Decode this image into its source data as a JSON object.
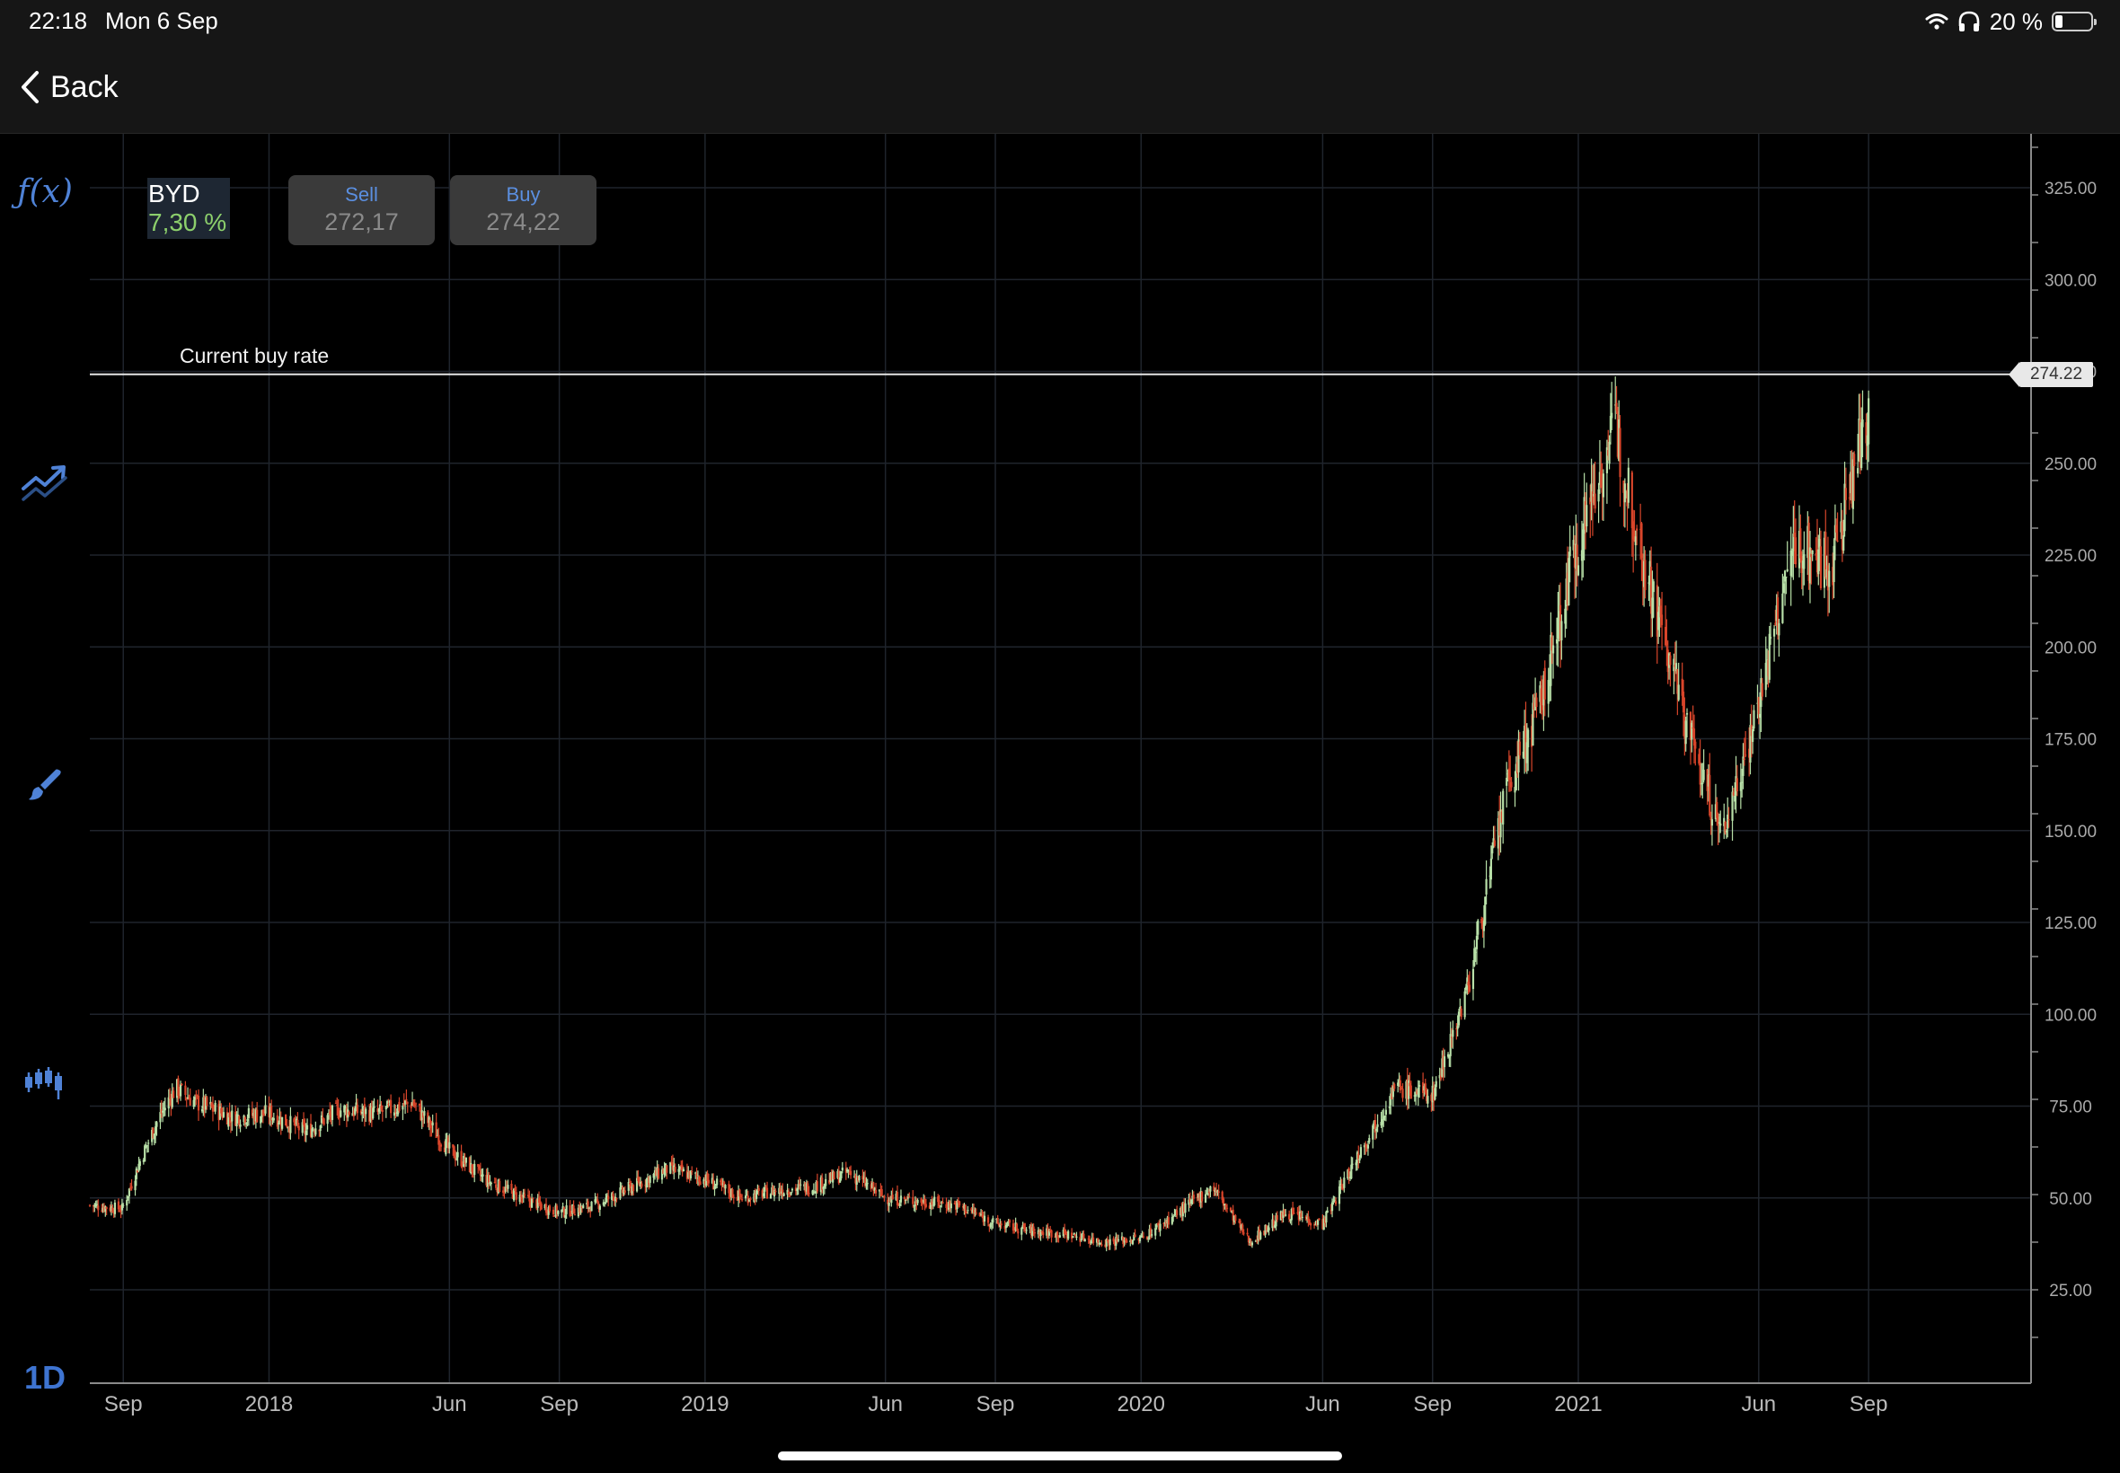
{
  "status_bar": {
    "time": "22:18",
    "date": "Mon 6 Sep",
    "battery_text": "20 %",
    "battery_level": 0.2
  },
  "nav": {
    "back_label": "Back"
  },
  "toolbar": {
    "items": [
      {
        "label": "ƒ(x)",
        "icon": "function-icon"
      },
      {
        "icon": "trend-chart-icon"
      },
      {
        "icon": "brush-icon"
      },
      {
        "icon": "candlestick-icon"
      },
      {
        "label": "1D",
        "icon": "timeframe"
      }
    ]
  },
  "instrument": {
    "name": "BYD",
    "change": "7,30 %",
    "change_color": "#8ccf6c"
  },
  "quotes": {
    "sell": {
      "label": "Sell",
      "value": "272,17"
    },
    "buy": {
      "label": "Buy",
      "value": "274,22"
    }
  },
  "current_rate": {
    "label": "Current buy rate",
    "value": "274.22"
  },
  "colors": {
    "up": "#b8e0a8",
    "down": "#d8452a",
    "grid": "#1f242c",
    "accent": "#4f82d6"
  },
  "chart_data": {
    "type": "candlestick",
    "title": "",
    "xlabel": "",
    "ylabel": "",
    "ylim": [
      0,
      330
    ],
    "y_ticks": [
      "325.00",
      "300.00",
      "275.00",
      "250.00",
      "225.00",
      "200.00",
      "175.00",
      "150.00",
      "125.00",
      "100.00",
      "75.00",
      "50.00",
      "25.00"
    ],
    "y_tick_values": [
      325,
      300,
      275,
      250,
      225,
      200,
      175,
      150,
      125,
      100,
      75,
      50,
      25
    ],
    "x_ticks": [
      {
        "label": "Sep",
        "date": "2017-09-01"
      },
      {
        "label": "2018",
        "date": "2018-01-01"
      },
      {
        "label": "Jun",
        "date": "2018-06-01"
      },
      {
        "label": "Sep",
        "date": "2018-09-01"
      },
      {
        "label": "2019",
        "date": "2019-01-01"
      },
      {
        "label": "Jun",
        "date": "2019-06-01"
      },
      {
        "label": "Sep",
        "date": "2019-09-01"
      },
      {
        "label": "2020",
        "date": "2020-01-01"
      },
      {
        "label": "Jun",
        "date": "2020-06-01"
      },
      {
        "label": "Sep",
        "date": "2020-09-01"
      },
      {
        "label": "2021",
        "date": "2021-01-01"
      },
      {
        "label": "Jun",
        "date": "2021-06-01"
      },
      {
        "label": "Sep",
        "date": "2021-09-01"
      }
    ],
    "x_range": [
      "2017-08-04",
      "2022-01-15"
    ],
    "current_buy_rate": 274.22,
    "series": [
      {
        "close_path": [
          [
            "2017-08-04",
            48
          ],
          [
            "2017-08-31",
            47
          ],
          [
            "2017-09-15",
            60
          ],
          [
            "2017-10-01",
            72
          ],
          [
            "2017-10-15",
            80
          ],
          [
            "2017-11-01",
            76
          ],
          [
            "2017-12-01",
            72
          ],
          [
            "2018-01-01",
            73
          ],
          [
            "2018-02-01",
            68
          ],
          [
            "2018-03-01",
            74
          ],
          [
            "2018-04-01",
            73
          ],
          [
            "2018-05-01",
            76
          ],
          [
            "2018-06-01",
            63
          ],
          [
            "2018-07-01",
            55
          ],
          [
            "2018-08-01",
            50
          ],
          [
            "2018-09-01",
            46
          ],
          [
            "2018-10-01",
            48
          ],
          [
            "2018-11-01",
            53
          ],
          [
            "2018-12-01",
            58
          ],
          [
            "2019-01-01",
            55
          ],
          [
            "2019-02-01",
            50
          ],
          [
            "2019-03-01",
            52
          ],
          [
            "2019-04-01",
            53
          ],
          [
            "2019-05-01",
            57
          ],
          [
            "2019-06-01",
            50
          ],
          [
            "2019-07-01",
            49
          ],
          [
            "2019-08-01",
            48
          ],
          [
            "2019-09-01",
            43
          ],
          [
            "2019-10-01",
            41
          ],
          [
            "2019-11-01",
            40
          ],
          [
            "2019-12-01",
            38
          ],
          [
            "2020-01-01",
            39
          ],
          [
            "2020-02-01",
            46
          ],
          [
            "2020-03-01",
            53
          ],
          [
            "2020-04-01",
            38
          ],
          [
            "2020-05-01",
            46
          ],
          [
            "2020-06-01",
            43
          ],
          [
            "2020-07-01",
            62
          ],
          [
            "2020-08-01",
            80
          ],
          [
            "2020-09-01",
            78
          ],
          [
            "2020-10-01",
            108
          ],
          [
            "2020-11-01",
            160
          ],
          [
            "2020-12-01",
            185
          ],
          [
            "2021-01-01",
            230
          ],
          [
            "2021-02-01",
            260
          ],
          [
            "2021-03-01",
            218
          ],
          [
            "2021-04-01",
            180
          ],
          [
            "2021-05-01",
            148
          ],
          [
            "2021-06-01",
            185
          ],
          [
            "2021-07-01",
            228
          ],
          [
            "2021-08-01",
            222
          ],
          [
            "2021-09-01",
            265
          ]
        ]
      }
    ]
  }
}
